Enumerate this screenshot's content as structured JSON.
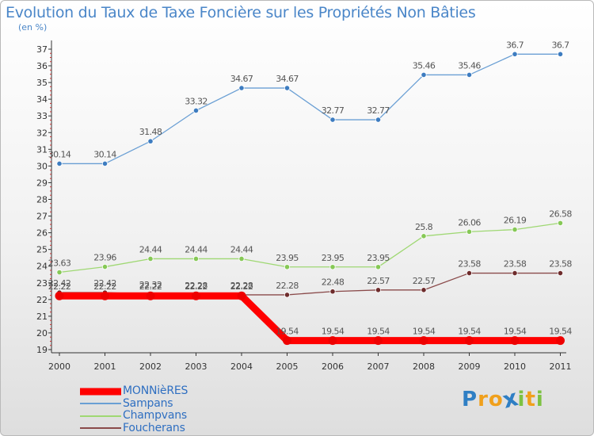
{
  "chart_data": {
    "type": "line",
    "title": "Evolution du Taux de Taxe Foncière sur les Propriétés Non Bâties",
    "unit_label": "(en %)",
    "xlabel": "",
    "ylabel": "",
    "categories": [
      "2000",
      "2001",
      "2002",
      "2003",
      "2004",
      "2005",
      "2006",
      "2007",
      "2008",
      "2009",
      "2010",
      "2011"
    ],
    "ylim": [
      19,
      37
    ],
    "yticks": [
      "19",
      "20",
      "21",
      "22",
      "23",
      "24",
      "25",
      "26",
      "27",
      "28",
      "29",
      "30",
      "31",
      "32",
      "33",
      "34",
      "35",
      "36",
      "37"
    ],
    "grid": false,
    "legend_position": "bottom-left",
    "series": [
      {
        "name": "Sampans",
        "color": "#6a9fd4",
        "marker": "#3d7cc0",
        "width": 1.3,
        "values": [
          30.14,
          30.14,
          31.48,
          33.32,
          34.67,
          34.67,
          32.77,
          32.77,
          35.46,
          35.46,
          36.7,
          36.7
        ],
        "labels": [
          "30.14",
          "30.14",
          "31.48",
          "33.32",
          "34.67",
          "34.67",
          "32.77",
          "32.77",
          "35.46",
          "35.46",
          "36.7",
          "36.7"
        ]
      },
      {
        "name": "Champvans",
        "color": "#9fd873",
        "marker": "#86c856",
        "width": 1.3,
        "values": [
          23.63,
          23.96,
          24.44,
          24.44,
          24.44,
          23.95,
          23.95,
          23.95,
          25.8,
          26.06,
          26.19,
          26.58
        ],
        "labels": [
          "23.63",
          "23.96",
          "24.44",
          "24.44",
          "24.44",
          "23.95",
          "23.95",
          "23.95",
          "25.8",
          "26.06",
          "26.19",
          "26.58"
        ]
      },
      {
        "name": "Foucherans",
        "color": "#8a4a4a",
        "marker": "#6e2c2c",
        "width": 1.3,
        "values": [
          22.42,
          22.42,
          22.32,
          22.28,
          22.28,
          22.28,
          22.48,
          22.57,
          22.57,
          23.58,
          23.58,
          23.58
        ],
        "labels": [
          "22.42",
          "22.42",
          "22.32",
          "22.28",
          "22.28",
          "22.28",
          "22.48",
          "22.57",
          "22.57",
          "23.58",
          "23.58",
          "23.58"
        ]
      },
      {
        "name": "MONNièRES",
        "color": "#ff0000",
        "marker": "#ee0000",
        "width": 9,
        "values": [
          22.22,
          22.22,
          22.22,
          22.22,
          22.22,
          19.54,
          19.54,
          19.54,
          19.54,
          19.54,
          19.54,
          19.54
        ],
        "labels": [
          "22.22",
          "22.22",
          "22.22",
          "22.22",
          "22.22",
          "19.54",
          "19.54",
          "19.54",
          "19.54",
          "19.54",
          "19.54",
          "19.54"
        ]
      }
    ],
    "legend": [
      {
        "name": "MONNièRES",
        "color": "#ff0000",
        "thickness": 9,
        "text_color": "#2f6fc1"
      },
      {
        "name": "Sampans",
        "color": "#6a9fd4",
        "thickness": 2,
        "text_color": "#2f6fc1"
      },
      {
        "name": "Champvans",
        "color": "#9fd873",
        "thickness": 2,
        "text_color": "#2f6fc1"
      },
      {
        "name": "Foucherans",
        "color": "#8a4a4a",
        "thickness": 2,
        "text_color": "#2f6fc1"
      }
    ]
  },
  "brand": {
    "letters": [
      "P",
      "r",
      "o",
      "x",
      "i",
      "t",
      "i"
    ],
    "colors": [
      "#2f7fc4",
      "#f0a01c",
      "#f0a01c",
      "#2f7fc4",
      "#7dc242",
      "#f0a01c",
      "#7dc242"
    ]
  },
  "colors": {
    "title": "#4a86c8",
    "axis": "#333333",
    "tick_label": "#333333",
    "point_label": "#555555"
  }
}
